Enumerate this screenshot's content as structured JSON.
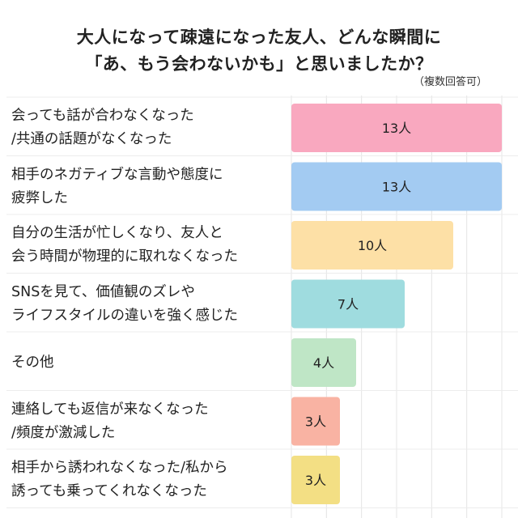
{
  "header": {
    "title_line1": "大人になって疎遠になった友人、どんな瞬間に",
    "title_line2": "「あ、もう会わないかも」と思いましたか？",
    "note": "（複数回答可）"
  },
  "chart_data": {
    "type": "bar",
    "orientation": "horizontal",
    "title": "大人になって疎遠になった友人、どんな瞬間に「あ、もう会わないかも」と思いましたか？",
    "subtitle": "（複数回答可）",
    "categories": [
      [
        "会っても話が合わなくなった",
        "/共通の話題がなくなった"
      ],
      [
        "相手のネガティブな言動や態度に",
        "疲弊した"
      ],
      [
        "自分の生活が忙しくなり、友人と",
        "会う時間が物理的に取れなくなった"
      ],
      [
        "SNSを見て、価値観のズレや",
        "ライフスタイルの違いを強く感じた"
      ],
      [
        "その他"
      ],
      [
        "連絡しても返信が来なくなった",
        "/頻度が激減した"
      ],
      [
        "相手から誘われなくなった/私から",
        "誘っても乗ってくれなくなった"
      ]
    ],
    "values": [
      13,
      13,
      10,
      7,
      4,
      3,
      3
    ],
    "value_labels": [
      "13人",
      "13人",
      "10人",
      "7人",
      "4人",
      "3人",
      "3人"
    ],
    "colors": [
      "#f9a8bf",
      "#a3cbf2",
      "#fde0a6",
      "#9fdcdf",
      "#bfe6c6",
      "#f9b3a3",
      "#f3df84"
    ],
    "xlim": [
      0,
      13
    ],
    "grid": true,
    "xlabel": "",
    "ylabel": ""
  }
}
